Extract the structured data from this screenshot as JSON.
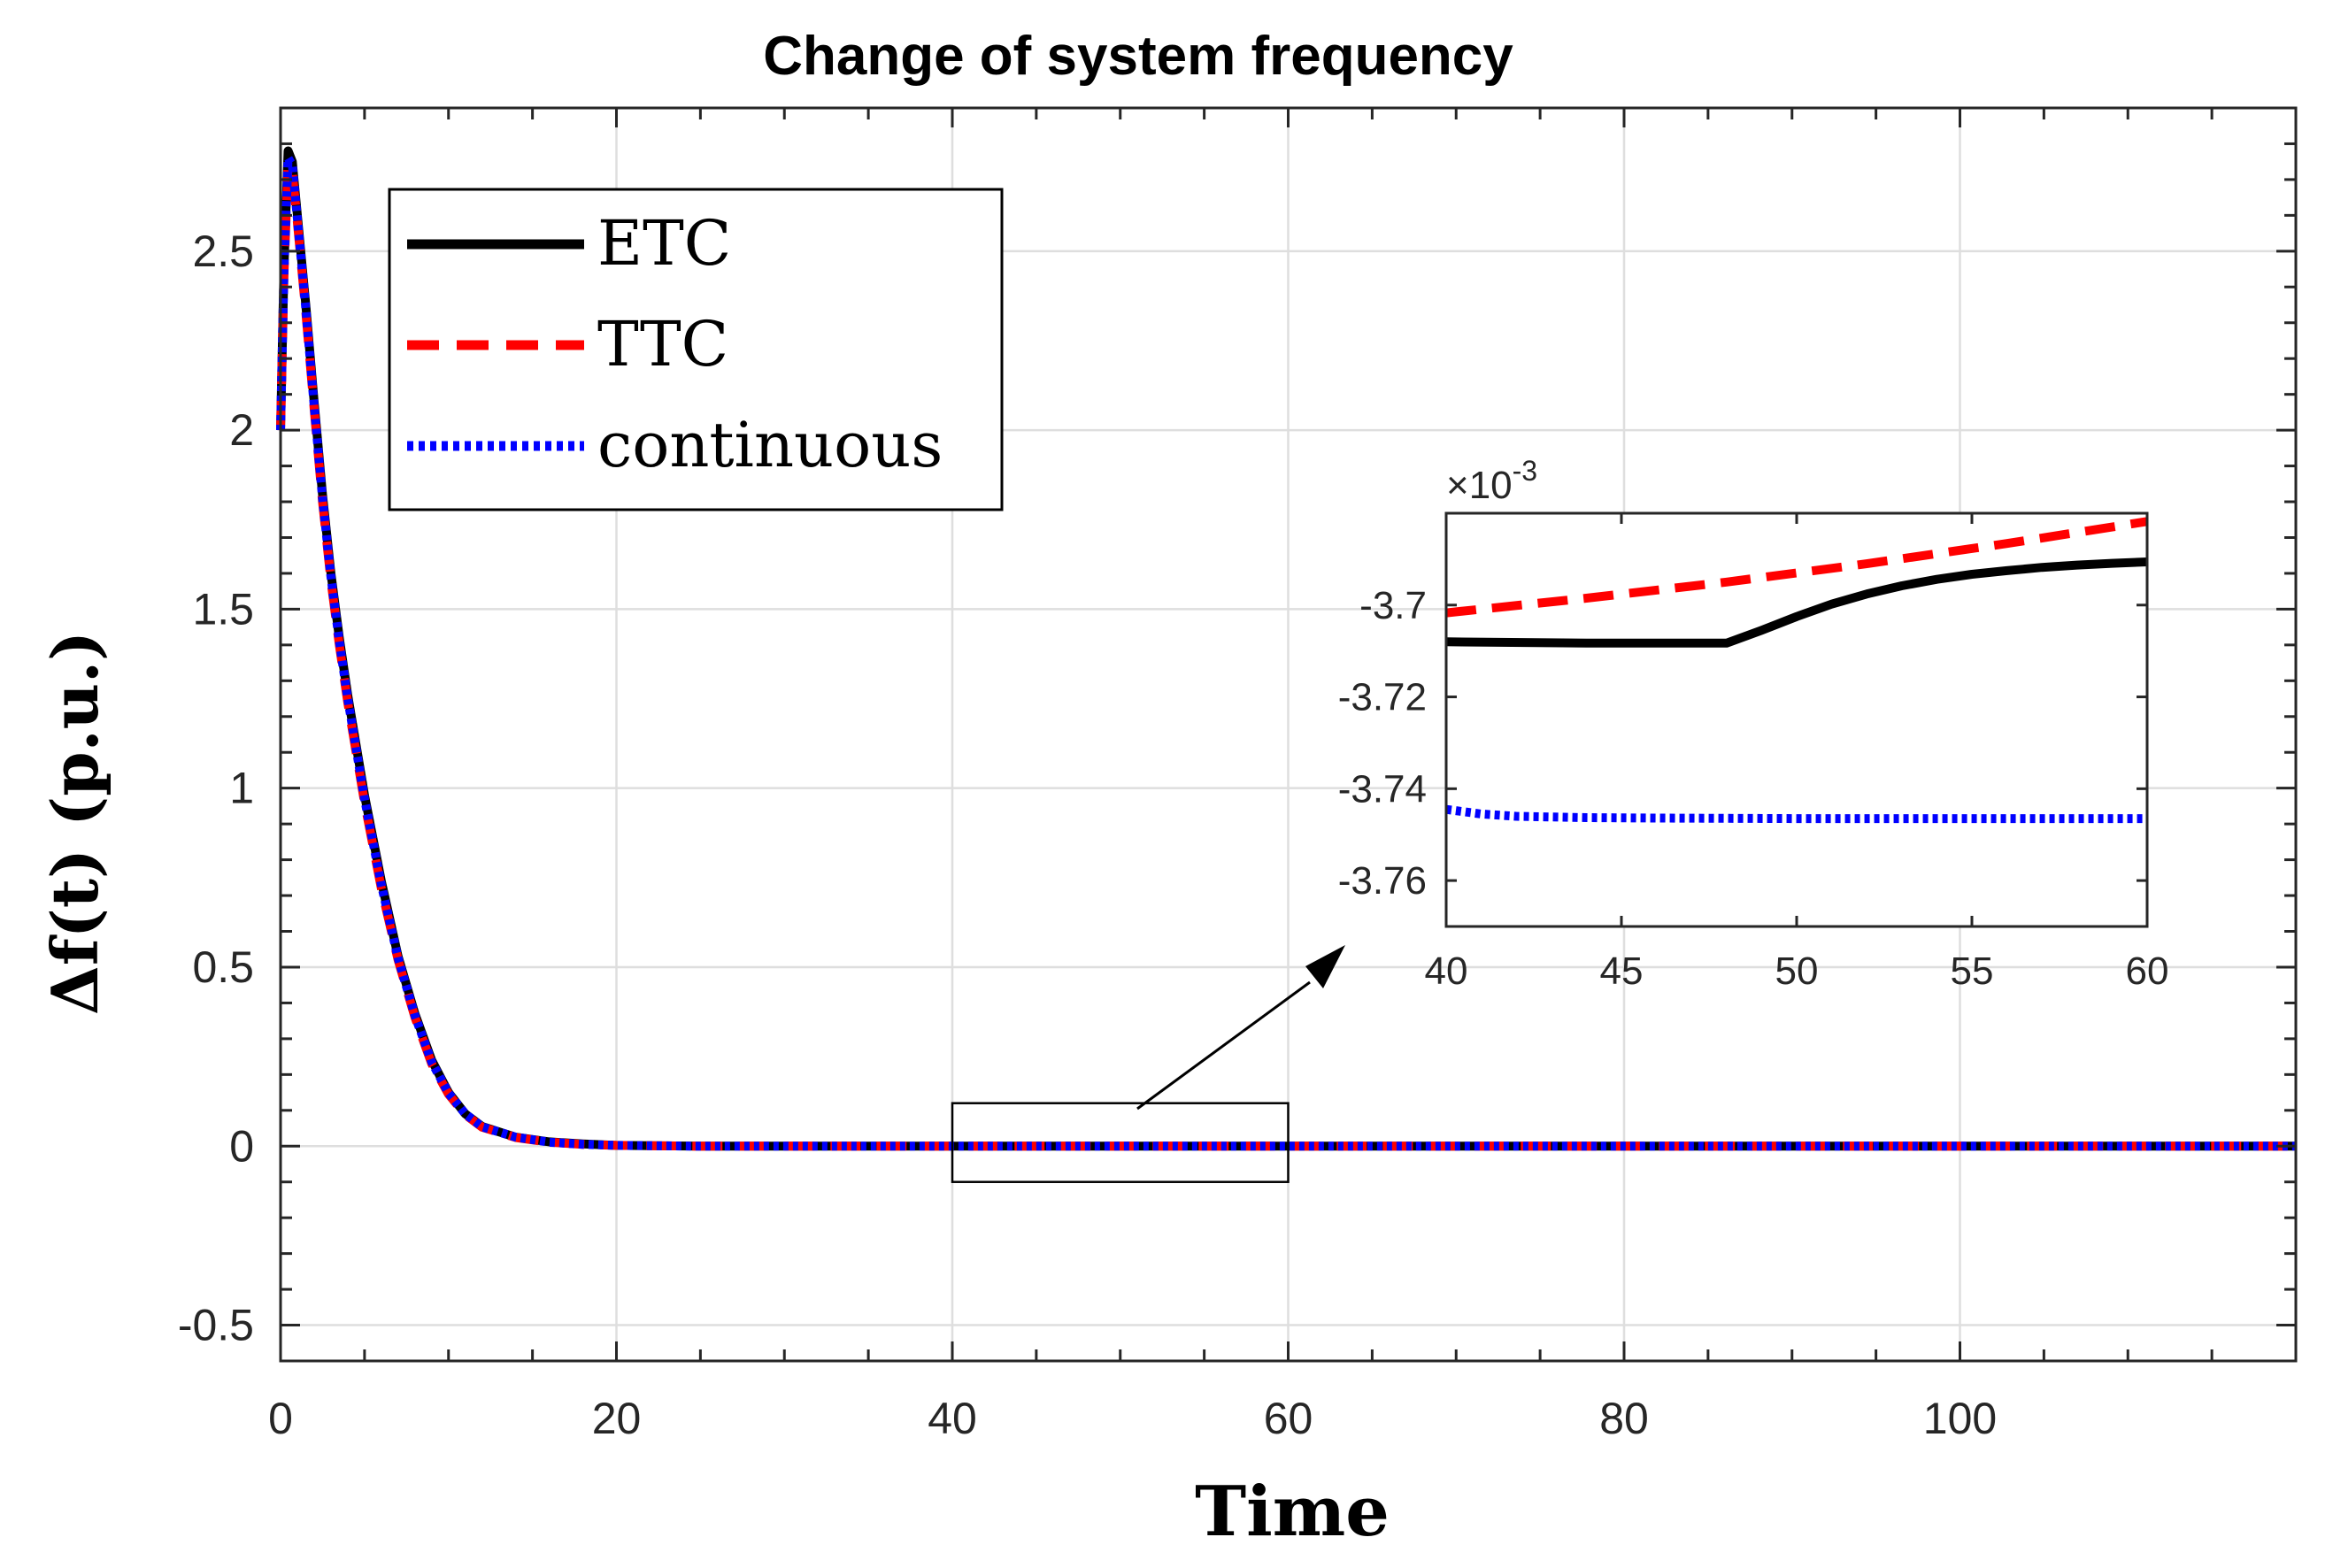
{
  "chart_data": [
    {
      "type": "line",
      "title": "Change of system frequency",
      "xlabel": "Time",
      "ylabel": "Δf(t) (p.u.)",
      "xlim": [
        0,
        120
      ],
      "ylim": [
        -0.6,
        2.9
      ],
      "xticks": [
        "0",
        "20",
        "40",
        "60",
        "80",
        "100"
      ],
      "yticks": [
        "-0.5",
        "0",
        "0.5",
        "1",
        "1.5",
        "2",
        "2.5"
      ],
      "grid": true,
      "legend_position": "top-left",
      "series": [
        {
          "name": "ETC",
          "color": "#000000",
          "style": "solid",
          "x": [
            0,
            0.2,
            0.45,
            0.7,
            1,
            1.5,
            2,
            2.5,
            3,
            3.5,
            4,
            5,
            6,
            7,
            8,
            9,
            10,
            11,
            12,
            14,
            16,
            18,
            20,
            25,
            30,
            40,
            60,
            80,
            100,
            120
          ],
          "y": [
            2.0,
            2.45,
            2.78,
            2.75,
            2.6,
            2.35,
            2.08,
            1.82,
            1.6,
            1.42,
            1.26,
            0.98,
            0.74,
            0.53,
            0.37,
            0.24,
            0.15,
            0.09,
            0.055,
            0.025,
            0.012,
            0.006,
            0.002,
            0.0,
            0.0,
            0.0,
            0.0,
            0.0,
            0.0,
            0.0
          ]
        },
        {
          "name": "TTC",
          "color": "#ff0000",
          "style": "dashed",
          "x": [
            0,
            0.2,
            0.45,
            0.7,
            1,
            1.5,
            2,
            2.5,
            3,
            3.5,
            4,
            5,
            6,
            7,
            8,
            9,
            10,
            11,
            12,
            14,
            16,
            18,
            20,
            25,
            30,
            40,
            60,
            80,
            100,
            120
          ],
          "y": [
            2.0,
            2.43,
            2.74,
            2.72,
            2.58,
            2.33,
            2.06,
            1.8,
            1.58,
            1.4,
            1.24,
            0.96,
            0.72,
            0.52,
            0.36,
            0.23,
            0.145,
            0.088,
            0.053,
            0.024,
            0.011,
            0.005,
            0.002,
            0.0,
            0.0,
            0.0,
            0.0,
            0.0,
            0.0,
            0.0
          ]
        },
        {
          "name": "continuous",
          "color": "#0000ff",
          "style": "dotted",
          "x": [
            0,
            0.2,
            0.45,
            0.7,
            1,
            1.5,
            2,
            2.5,
            3,
            3.5,
            4,
            5,
            6,
            7,
            8,
            9,
            10,
            11,
            12,
            14,
            16,
            18,
            20,
            25,
            30,
            40,
            60,
            80,
            100,
            120
          ],
          "y": [
            2.0,
            2.44,
            2.76,
            2.74,
            2.59,
            2.34,
            2.07,
            1.81,
            1.59,
            1.41,
            1.25,
            0.97,
            0.73,
            0.525,
            0.365,
            0.235,
            0.148,
            0.09,
            0.054,
            0.025,
            0.011,
            0.005,
            0.002,
            0.0,
            0.0,
            0.0,
            0.0,
            0.0,
            0.0,
            0.0
          ]
        }
      ],
      "annotations": [
        {
          "type": "zoom_box",
          "x_range": [
            40,
            60
          ],
          "y_range": [
            -0.1,
            0.12
          ]
        }
      ]
    },
    {
      "type": "line",
      "title": "",
      "inset": true,
      "y_exponent_label": "×10",
      "y_exponent_power": "-3",
      "xlim": [
        40,
        60
      ],
      "ylim": [
        -3.77,
        -3.68
      ],
      "xticks": [
        "40",
        "45",
        "50",
        "55",
        "60"
      ],
      "yticks": [
        "-3.7",
        "-3.72",
        "-3.74",
        "-3.76"
      ],
      "series": [
        {
          "name": "ETC",
          "color": "#000000",
          "style": "solid",
          "x": [
            40,
            44,
            48,
            49,
            50,
            51,
            52,
            53,
            54,
            55,
            56,
            57,
            58,
            59,
            60
          ],
          "y": [
            -3.708,
            -3.7083,
            -3.7083,
            -3.7055,
            -3.7025,
            -3.6998,
            -3.6976,
            -3.6958,
            -3.6944,
            -3.6933,
            -3.6925,
            -3.6918,
            -3.6913,
            -3.6909,
            -3.6906
          ]
        },
        {
          "name": "TTC",
          "color": "#ff0000",
          "style": "dashed",
          "x": [
            40,
            44,
            48,
            52,
            56,
            60
          ],
          "y": [
            -3.7017,
            -3.6985,
            -3.695,
            -3.691,
            -3.6866,
            -3.6818
          ]
        },
        {
          "name": "continuous",
          "color": "#0000ff",
          "style": "dotted",
          "x": [
            40,
            41,
            42,
            44,
            46,
            50,
            55,
            60
          ],
          "y": [
            -3.7445,
            -3.7455,
            -3.746,
            -3.7463,
            -3.7464,
            -3.7465,
            -3.7465,
            -3.7465
          ]
        }
      ]
    }
  ]
}
